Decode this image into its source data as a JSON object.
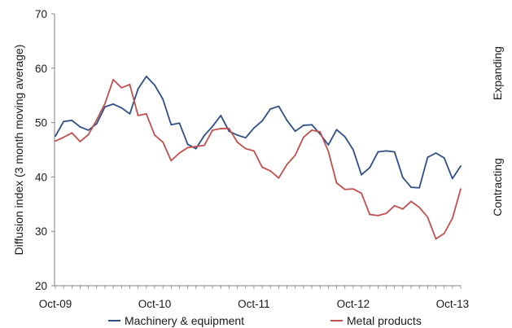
{
  "chart_data": {
    "type": "line",
    "title": "",
    "xlabel": "",
    "ylabel": "Diffusion index (3 month moving average)",
    "ylim": [
      20,
      70
    ],
    "yticks": [
      20,
      30,
      40,
      50,
      60,
      70
    ],
    "x_tick_labels": [
      "Oct-09",
      "Oct-10",
      "Oct-11",
      "Oct-12",
      "Oct-13"
    ],
    "x_start": "Oct-09",
    "x_end": "Oct-13",
    "grid": false,
    "zones": {
      "upper": "Expanding",
      "lower": "Contracting"
    },
    "legend_position": "bottom",
    "series": [
      {
        "name": "Machinery & equipment",
        "color": "#2e4f86",
        "values": [
          47.5,
          50.2,
          50.4,
          49.2,
          48.6,
          49.8,
          52.9,
          53.4,
          52.7,
          51.6,
          56.2,
          58.5,
          56.9,
          54.3,
          49.6,
          49.9,
          46.0,
          45.2,
          47.6,
          49.3,
          51.3,
          48.4,
          47.7,
          47.2,
          49.0,
          50.3,
          52.5,
          53.0,
          50.4,
          48.4,
          49.5,
          49.6,
          47.9,
          45.9,
          48.7,
          47.4,
          45.0,
          40.4,
          41.7,
          44.6,
          44.8,
          44.6,
          39.9,
          38.1,
          38.0,
          43.6,
          44.4,
          43.5,
          39.7,
          42.0
        ]
      },
      {
        "name": "Metal products",
        "color": "#c0504d",
        "values": [
          46.6,
          47.3,
          48.1,
          46.5,
          47.8,
          50.5,
          53.5,
          57.9,
          56.4,
          57.0,
          51.3,
          51.6,
          47.7,
          46.4,
          43.0,
          44.4,
          45.4,
          45.6,
          45.8,
          48.6,
          48.9,
          48.9,
          46.4,
          45.2,
          44.8,
          41.8,
          41.1,
          39.8,
          42.3,
          44.0,
          47.3,
          48.6,
          48.3,
          44.7,
          38.9,
          37.7,
          37.8,
          37.0,
          33.1,
          32.9,
          33.3,
          34.7,
          34.1,
          35.5,
          34.4,
          32.6,
          28.6,
          29.6,
          32.4,
          37.8
        ]
      }
    ]
  }
}
